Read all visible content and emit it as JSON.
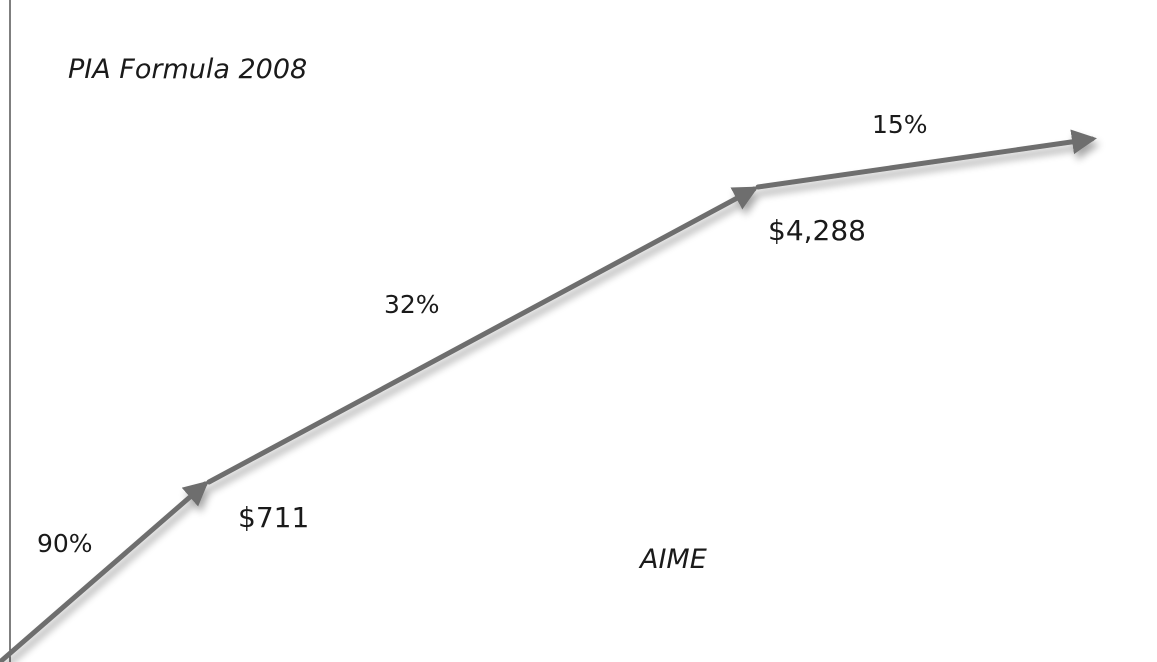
{
  "title": "PIA Formula 2008",
  "x_axis_label": "AIME",
  "segments": [
    {
      "rate": "90%"
    },
    {
      "rate": "32%"
    },
    {
      "rate": "15%"
    }
  ],
  "bend_points": [
    {
      "label": "$711"
    },
    {
      "label": "$4,288"
    }
  ],
  "colors": {
    "arrow": "#6e6e6e",
    "axis": "#555555",
    "text": "#1a1a1a",
    "background": "#ffffff"
  }
}
